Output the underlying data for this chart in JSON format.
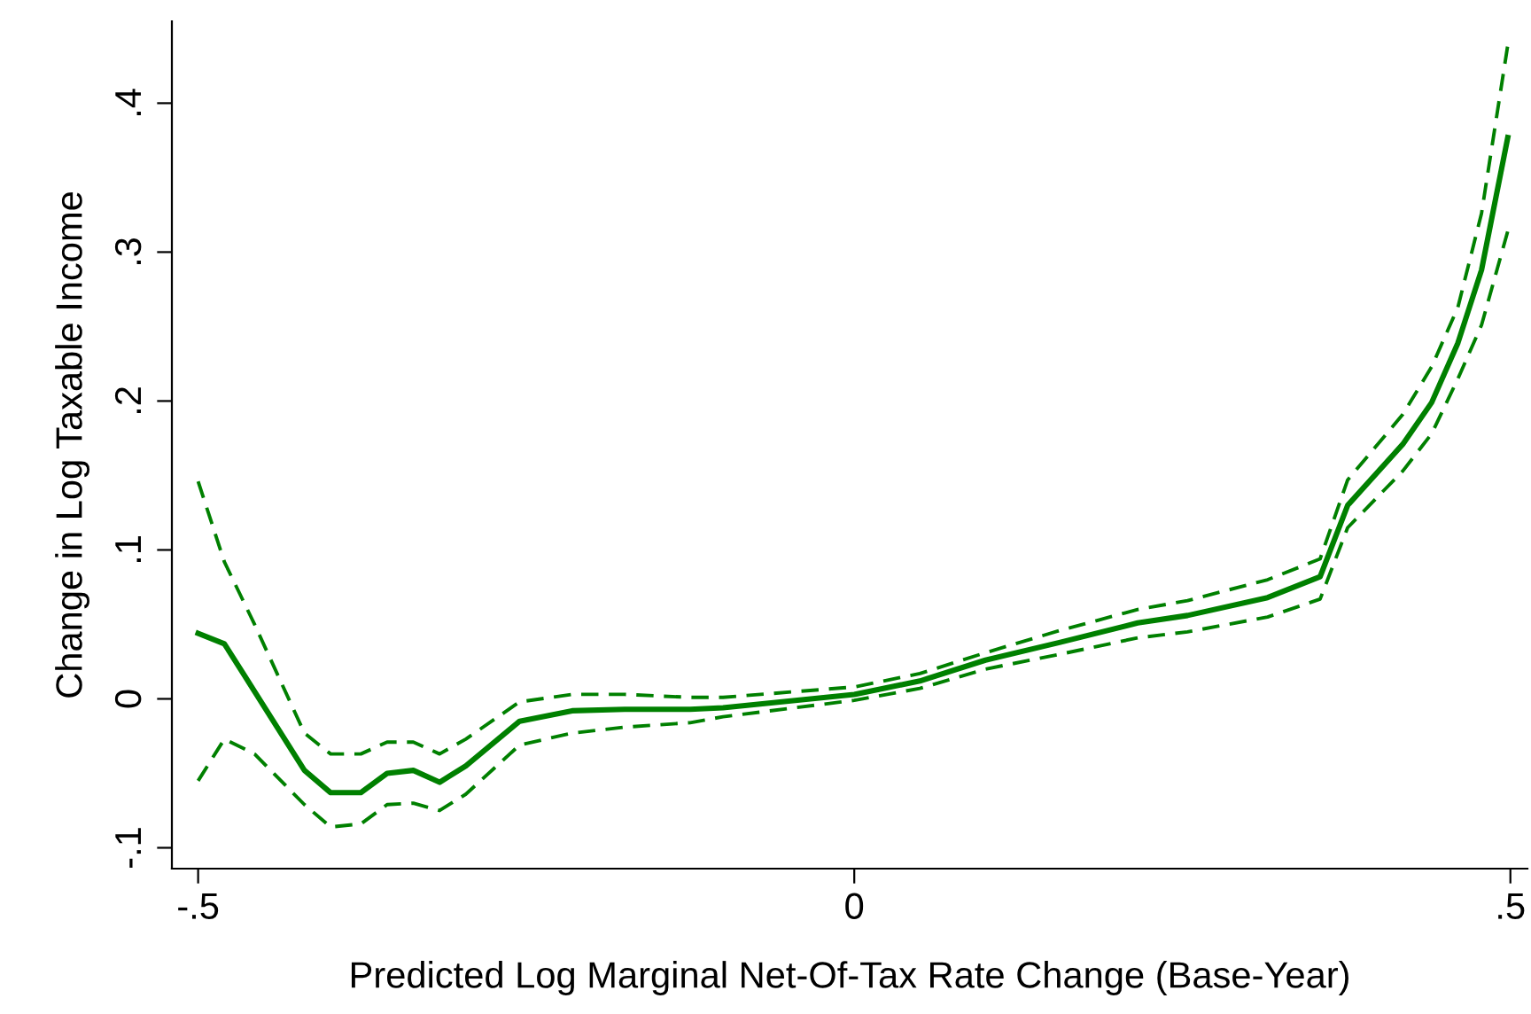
{
  "chart_data": {
    "type": "line",
    "xlabel": "Predicted Log Marginal Net-Of-Tax Rate Change (Base-Year)",
    "ylabel": "Change in Log Taxable Income",
    "x": [
      -0.5,
      -0.48,
      -0.457,
      -0.419,
      -0.399,
      -0.376,
      -0.356,
      -0.336,
      -0.316,
      -0.296,
      -0.255,
      -0.215,
      -0.175,
      -0.125,
      -0.1,
      0,
      0.05,
      0.1,
      0.157,
      0.216,
      0.254,
      0.315,
      0.355,
      0.376,
      0.418,
      0.44,
      0.46,
      0.478,
      0.498
    ],
    "series": [
      {
        "color": "#008000",
        "line_style": "solid",
        "values": [
          0.044,
          0.037,
          0.005,
          -0.048,
          -0.063,
          -0.063,
          -0.05,
          -0.048,
          -0.056,
          -0.045,
          -0.015,
          -0.008,
          -0.007,
          -0.007,
          -0.006,
          0.003,
          0.012,
          0.026,
          0.038,
          0.051,
          0.056,
          0.068,
          0.082,
          0.13,
          0.171,
          0.199,
          0.239,
          0.288,
          0.377
        ]
      },
      {
        "color": "#008000",
        "line_style": "dashed",
        "values": [
          0.146,
          0.092,
          0.05,
          -0.023,
          -0.037,
          -0.037,
          -0.029,
          -0.029,
          -0.037,
          -0.027,
          -0.002,
          0.003,
          0.003,
          0.001,
          0.001,
          0.008,
          0.017,
          0.031,
          0.046,
          0.06,
          0.066,
          0.08,
          0.094,
          0.147,
          0.191,
          0.223,
          0.263,
          0.326,
          0.439
        ]
      },
      {
        "color": "#008000",
        "line_style": "dashed",
        "values": [
          -0.055,
          -0.027,
          -0.037,
          -0.071,
          -0.086,
          -0.084,
          -0.071,
          -0.07,
          -0.075,
          -0.064,
          -0.031,
          -0.023,
          -0.019,
          -0.016,
          -0.012,
          -0.001,
          0.007,
          0.02,
          0.03,
          0.041,
          0.045,
          0.055,
          0.067,
          0.115,
          0.153,
          0.178,
          0.215,
          0.251,
          0.314
        ]
      }
    ],
    "xlim": [
      -0.52,
      0.513
    ],
    "ylim": [
      -0.114,
      0.455
    ],
    "xticks": [
      {
        "value": -0.5,
        "label": "-.5"
      },
      0,
      {
        "value": 0.5,
        "label": ".5"
      }
    ],
    "yticks": [
      {
        "value": -0.1,
        "label": "-.1"
      },
      0,
      {
        "value": 0.1,
        "label": ".1"
      },
      {
        "value": 0.2,
        "label": ".2"
      },
      {
        "value": 0.3,
        "label": ".3"
      },
      {
        "value": 0.4,
        "label": ".4"
      }
    ],
    "grid": false,
    "legend": false
  }
}
